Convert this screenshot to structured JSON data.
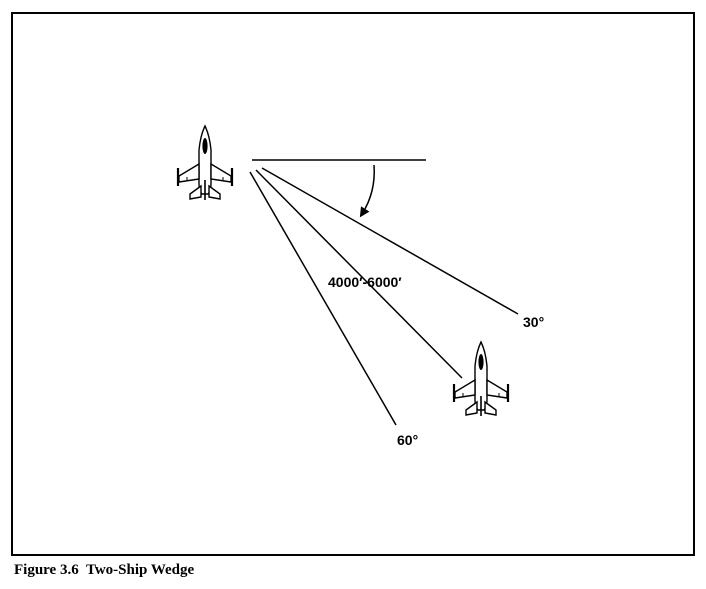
{
  "diagram": {
    "distance_label": "4000′-6000′",
    "angle_30_label": "30°",
    "angle_60_label": "60°",
    "aircraft_icon": "fighter-jet-icon",
    "colors": {
      "stroke": "#000000",
      "background": "#ffffff"
    }
  },
  "caption": {
    "text": "Figure 3.6  Two-Ship Wedge"
  }
}
